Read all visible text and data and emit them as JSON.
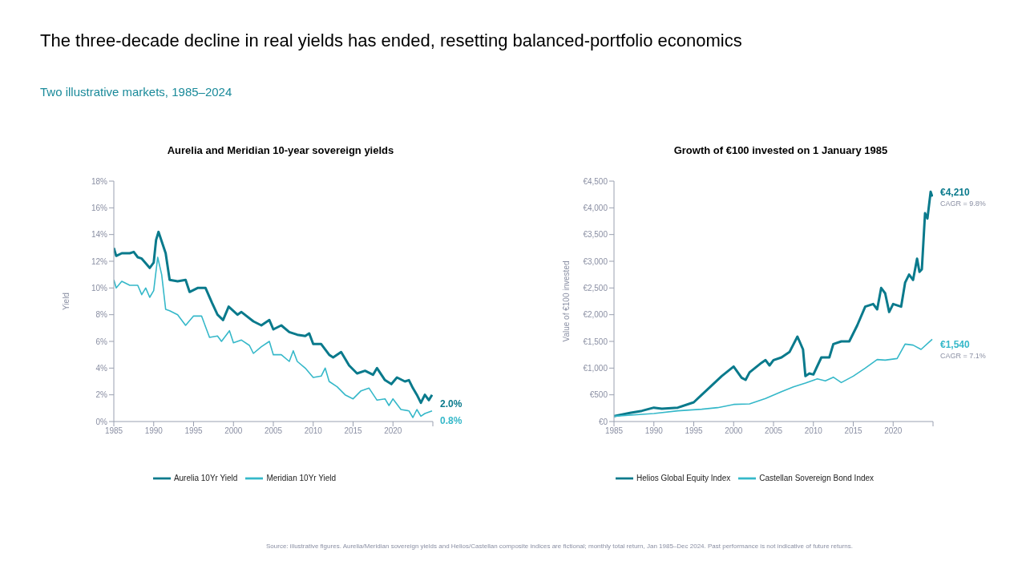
{
  "chart_data": [
    {
      "type": "other",
      "title": "The three-decade decline in real yields has ended, resetting balanced-portfolio economics",
      "subtitle": "Two illustrative markets, 1985–2024",
      "annotations": [
        "Source: illustrative figures. Aurelia/Meridian sovereign yields and Helios/Castellan composite indices are fictional; monthly total return, Jan 1985–Dec 2024. Past performance is not indicative of future returns."
      ]
    },
    {
      "type": "line",
      "title": "Aurelia and Meridian 10-year sovereign yields",
      "ylabel": "Yield",
      "xlim": [
        1985,
        2025
      ],
      "xticks": [
        1985,
        1990,
        1995,
        2000,
        2005,
        2010,
        2015,
        2020,
        {
          "value": 2025,
          "label": null
        }
      ],
      "ylim": [
        0,
        18
      ],
      "yticks": [
        {
          "value": 0,
          "label": "0%"
        },
        {
          "value": 2,
          "label": "2%"
        },
        {
          "value": 4,
          "label": "4%"
        },
        {
          "value": 6,
          "label": "6%"
        },
        {
          "value": 8,
          "label": "8%"
        },
        {
          "value": 10,
          "label": "10%"
        },
        {
          "value": 12,
          "label": "12%"
        },
        {
          "value": 14,
          "label": "14%"
        },
        {
          "value": 16,
          "label": "16%"
        },
        {
          "value": 18,
          "label": "18%"
        }
      ],
      "grid": false,
      "legend": "bottom",
      "marker": "none",
      "line_style": "solid",
      "series": [
        {
          "name": "Aurelia 10Yr Yield",
          "color": "#0a7a8c",
          "x": [
            1985,
            1985.3,
            1986,
            1987,
            1987.5,
            1988,
            1988.5,
            1989.5,
            1990,
            1990.3,
            1990.6,
            1991.5,
            1992,
            1993,
            1994,
            1994.5,
            1995.5,
            1996.5,
            1997.3,
            1998,
            1998.7,
            1999.4,
            2000.5,
            2001,
            2002.5,
            2003.5,
            2004.5,
            2005,
            2006,
            2007,
            2008,
            2009,
            2009.5,
            2010,
            2011,
            2012,
            2012.5,
            2013.5,
            2014.5,
            2015.5,
            2016.5,
            2017.5,
            2018,
            2019,
            2019.8,
            2020.5,
            2021.5,
            2022,
            2022.5,
            2023,
            2023.5,
            2024,
            2024.5,
            2024.9
          ],
          "values": [
            13.0,
            12.4,
            12.6,
            12.6,
            12.7,
            12.3,
            12.2,
            11.5,
            11.9,
            13.6,
            14.2,
            12.6,
            10.6,
            10.5,
            10.6,
            9.7,
            10.0,
            10.0,
            8.9,
            8.0,
            7.6,
            8.6,
            8.0,
            8.2,
            7.5,
            7.2,
            7.6,
            6.9,
            7.2,
            6.7,
            6.5,
            6.4,
            6.6,
            5.8,
            5.8,
            5.0,
            4.8,
            5.2,
            4.2,
            3.6,
            3.8,
            3.5,
            4.0,
            3.1,
            2.8,
            3.3,
            3.0,
            3.1,
            2.5,
            2.0,
            1.4,
            2.0,
            1.6,
            2.0
          ],
          "value_labels": [
            null,
            null,
            null,
            null,
            null,
            null,
            null,
            null,
            null,
            null,
            null,
            null,
            null,
            null,
            null,
            null,
            null,
            null,
            null,
            null,
            null,
            null,
            null,
            null,
            null,
            null,
            null,
            null,
            null,
            null,
            null,
            null,
            null,
            null,
            null,
            null,
            null,
            null,
            null,
            null,
            null,
            null,
            null,
            null,
            null,
            null,
            null,
            null,
            null,
            null,
            null,
            null,
            null,
            "2.0%"
          ]
        },
        {
          "name": "Meridian 10Yr Yield",
          "color": "#35b8c9",
          "x": [
            1985,
            1985.3,
            1986,
            1987,
            1988,
            1988.5,
            1989,
            1989.5,
            1990,
            1990.5,
            1991,
            1991.5,
            1992,
            1993,
            1994,
            1995,
            1996,
            1997,
            1998,
            1998.5,
            1999.5,
            2000,
            2001,
            2002,
            2002.5,
            2003.5,
            2004.5,
            2005,
            2006,
            2007,
            2007.5,
            2008,
            2009,
            2010,
            2011,
            2011.5,
            2012,
            2013,
            2014,
            2015,
            2016,
            2017,
            2018,
            2019,
            2019.5,
            2020,
            2021,
            2022,
            2022.5,
            2023,
            2023.5,
            2024,
            2024.9
          ],
          "values": [
            10.6,
            10.0,
            10.5,
            10.2,
            10.2,
            9.5,
            10.0,
            9.3,
            9.8,
            12.3,
            11.0,
            8.4,
            8.3,
            8.0,
            7.2,
            7.9,
            7.9,
            6.3,
            6.4,
            6.0,
            6.8,
            5.9,
            6.1,
            5.7,
            5.1,
            5.6,
            6.0,
            5.0,
            5.0,
            4.5,
            5.3,
            4.5,
            4.0,
            3.3,
            3.4,
            4.0,
            3.0,
            2.6,
            2.0,
            1.7,
            2.3,
            2.5,
            1.6,
            1.7,
            1.2,
            1.7,
            0.9,
            0.8,
            0.3,
            0.9,
            0.4,
            0.6,
            0.8
          ],
          "value_labels": [
            null,
            null,
            null,
            null,
            null,
            null,
            null,
            null,
            null,
            null,
            null,
            null,
            null,
            null,
            null,
            null,
            null,
            null,
            null,
            null,
            null,
            null,
            null,
            null,
            null,
            null,
            null,
            null,
            null,
            null,
            null,
            null,
            null,
            null,
            null,
            null,
            null,
            null,
            null,
            null,
            null,
            null,
            null,
            null,
            null,
            null,
            null,
            null,
            null,
            null,
            null,
            null,
            "0.8%"
          ]
        }
      ]
    },
    {
      "type": "line",
      "title": "Growth of €100 invested on 1 January 1985",
      "ylabel": "Value of €100 invested",
      "xlim": [
        1985,
        2025
      ],
      "xticks": [
        1985,
        1990,
        1995,
        2000,
        2005,
        2010,
        2015,
        2020,
        {
          "value": 2025,
          "label": null
        }
      ],
      "ylim": [
        0,
        4500
      ],
      "yticks": [
        {
          "value": 0,
          "label": "€0"
        },
        {
          "value": 500,
          "label": "€500"
        },
        {
          "value": 1000,
          "label": "€1,000"
        },
        {
          "value": 1500,
          "label": "€1,500"
        },
        {
          "value": 2000,
          "label": "€2,000"
        },
        {
          "value": 2500,
          "label": "€2,500"
        },
        {
          "value": 3000,
          "label": "€3,000"
        },
        {
          "value": 3500,
          "label": "€3,500"
        },
        {
          "value": 4000,
          "label": "€4,000"
        },
        {
          "value": 4500,
          "label": "€4,500"
        }
      ],
      "grid": false,
      "legend": "bottom",
      "marker": "none",
      "line_style": "solid",
      "annotations": [
        "CAGR = 9.8%",
        "CAGR = 7.1%"
      ],
      "series": [
        {
          "name": "Helios Global Equity Index",
          "color": "#0a7a8c",
          "x": [
            1985,
            1987,
            1988.5,
            1990,
            1991,
            1993,
            1995,
            1996,
            1997,
            1998.5,
            2000,
            2001,
            2001.5,
            2002,
            2003.5,
            2004,
            2004.5,
            2005,
            2006,
            2007,
            2008,
            2008.7,
            2009,
            2009.5,
            2010,
            2011,
            2012,
            2012.5,
            2013.5,
            2014.5,
            2015.5,
            2016.5,
            2017.5,
            2018,
            2018.5,
            2019,
            2019.5,
            2020,
            2021,
            2021.5,
            2022,
            2022.5,
            2023,
            2023.3,
            2023.6,
            2024,
            2024.3,
            2024.7,
            2024.9
          ],
          "values": [
            100,
            160,
            200,
            260,
            240,
            260,
            360,
            500,
            640,
            850,
            1030,
            820,
            780,
            920,
            1100,
            1150,
            1050,
            1150,
            1200,
            1300,
            1590,
            1350,
            850,
            900,
            880,
            1200,
            1200,
            1450,
            1500,
            1500,
            1800,
            2150,
            2200,
            2100,
            2500,
            2400,
            2050,
            2200,
            2150,
            2600,
            2750,
            2650,
            3050,
            2800,
            2850,
            3900,
            3800,
            4300,
            4210
          ],
          "value_labels": [
            null,
            null,
            null,
            null,
            null,
            null,
            null,
            null,
            null,
            null,
            null,
            null,
            null,
            null,
            null,
            null,
            null,
            null,
            null,
            null,
            null,
            null,
            null,
            null,
            null,
            null,
            null,
            null,
            null,
            null,
            null,
            null,
            null,
            null,
            null,
            null,
            null,
            null,
            null,
            null,
            null,
            null,
            null,
            null,
            null,
            null,
            null,
            null,
            "€4,210"
          ]
        },
        {
          "name": "Castellan Sovereign Bond Index",
          "color": "#35b8c9",
          "x": [
            1985,
            1990,
            1993,
            1996,
            1998,
            2000,
            2002,
            2004,
            2006,
            2007.5,
            2009,
            2010.5,
            2011.5,
            2012.5,
            2013.5,
            2015,
            2016.5,
            2018,
            2019,
            2020.5,
            2021.5,
            2022.5,
            2023.5,
            2024.9
          ],
          "values": [
            100,
            150,
            200,
            230,
            260,
            320,
            330,
            430,
            560,
            650,
            720,
            800,
            760,
            830,
            730,
            850,
            1000,
            1160,
            1150,
            1180,
            1450,
            1430,
            1350,
            1540
          ],
          "value_labels": [
            null,
            null,
            null,
            null,
            null,
            null,
            null,
            null,
            null,
            null,
            null,
            null,
            null,
            null,
            null,
            null,
            null,
            null,
            null,
            null,
            null,
            null,
            null,
            "€1,540"
          ]
        }
      ]
    }
  ]
}
